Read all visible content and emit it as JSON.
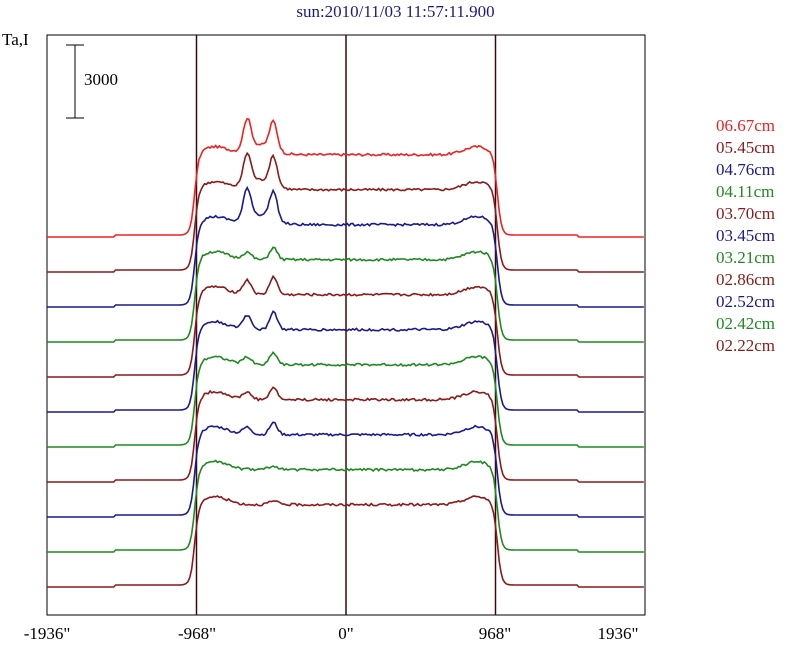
{
  "title": "sun:2010/11/03 11:57:11.900",
  "ylabel": "Ta,I",
  "scale_bar_label": "3000",
  "x_ticks": [
    "-1936\"",
    "-968\"",
    "0\"",
    "968\"",
    "1936\""
  ],
  "chart_data": {
    "type": "line",
    "title": "sun:2010/11/03 11:57:11.900",
    "ylabel": "Ta,I",
    "x_unit": "arcsec",
    "xlim": [
      -1936,
      1936
    ],
    "x_ticks": [
      -1936,
      -968,
      0,
      968,
      1936
    ],
    "vertical_lines": [
      -968,
      0,
      968
    ],
    "scale_bar": 3000,
    "grid": false,
    "legend_position": "right",
    "series": [
      {
        "name": "06.67cm",
        "color": "#ee2222",
        "baseline": 0,
        "profile": "storm"
      },
      {
        "name": "05.45cm",
        "color": "#8b1a1a",
        "baseline": -1,
        "profile": "storm"
      },
      {
        "name": "04.76cm",
        "color": "#1a1a8c",
        "baseline": -2,
        "profile": "storm"
      },
      {
        "name": "04.11cm",
        "color": "#1e8a1e",
        "baseline": -3,
        "profile": "weak"
      },
      {
        "name": "03.70cm",
        "color": "#8b1a1a",
        "baseline": -4,
        "profile": "mid"
      },
      {
        "name": "03.45cm",
        "color": "#1a1a8c",
        "baseline": -5,
        "profile": "mid"
      },
      {
        "name": "03.21cm",
        "color": "#1e8a1e",
        "baseline": -6,
        "profile": "weak"
      },
      {
        "name": "02.86cm",
        "color": "#8b1a1a",
        "baseline": -7,
        "profile": "weak"
      },
      {
        "name": "02.52cm",
        "color": "#1a1a8c",
        "baseline": -8,
        "profile": "weak"
      },
      {
        "name": "02.42cm",
        "color": "#1e8a1e",
        "baseline": -9,
        "profile": "flat"
      },
      {
        "name": "02.22cm",
        "color": "#8b1a1a",
        "baseline": -10,
        "profile": "flat"
      }
    ]
  }
}
